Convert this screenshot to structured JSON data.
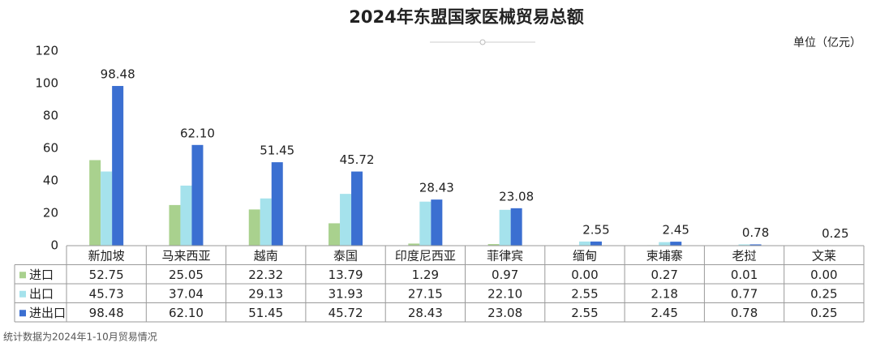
{
  "chart_data": {
    "type": "bar",
    "title": "2024年东盟国家医械贸易总额",
    "unit_label": "单位（亿元）",
    "footnote": "统计数据为2024年1-10月贸易情况",
    "categories": [
      "新加坡",
      "马来西亚",
      "越南",
      "泰国",
      "印度尼西亚",
      "菲律宾",
      "缅甸",
      "柬埔寨",
      "老挝",
      "文莱"
    ],
    "series": [
      {
        "name": "进口",
        "color": "#a9d18e",
        "values": [
          52.75,
          25.05,
          22.32,
          13.79,
          1.29,
          0.97,
          0.0,
          0.27,
          0.01,
          0.0
        ],
        "value_labels": [
          "52.75",
          "25.05",
          "22.32",
          "13.79",
          "1.29",
          "0.97",
          "0.00",
          "0.27",
          "0.01",
          "0.00"
        ]
      },
      {
        "name": "出口",
        "color": "#a5e2ec",
        "values": [
          45.73,
          37.04,
          29.13,
          31.93,
          27.15,
          22.1,
          2.55,
          2.18,
          0.77,
          0.25
        ],
        "value_labels": [
          "45.73",
          "37.04",
          "29.13",
          "31.93",
          "27.15",
          "22.10",
          "2.55",
          "2.18",
          "0.77",
          "0.25"
        ]
      },
      {
        "name": "进出口",
        "color": "#3b6fd1",
        "values": [
          98.48,
          62.1,
          51.45,
          45.72,
          28.43,
          23.08,
          2.55,
          2.45,
          0.78,
          0.25
        ],
        "value_labels": [
          "98.48",
          "62.10",
          "51.45",
          "45.72",
          "28.43",
          "23.08",
          "2.55",
          "2.45",
          "0.78",
          "0.25"
        ],
        "show_labels": true
      }
    ],
    "ylim": [
      0,
      120
    ],
    "yticks": [
      0,
      20,
      40,
      60,
      80,
      100,
      120
    ],
    "grid": false
  }
}
